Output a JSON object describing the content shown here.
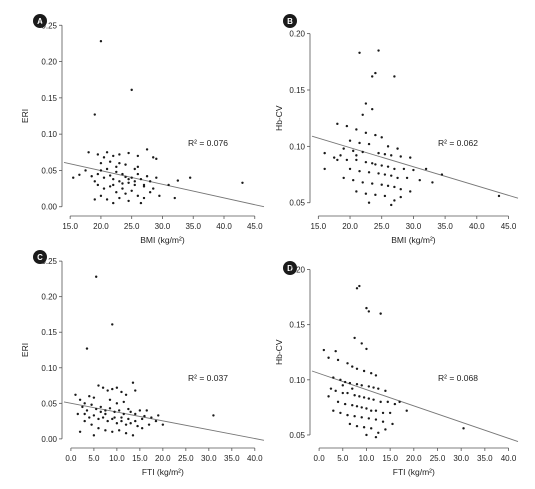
{
  "chart_data": [
    {
      "panel": "A",
      "type": "scatter",
      "xlabel": "BMI (kg/m²)",
      "ylabel": "ERI",
      "xlim": [
        14,
        46.5
      ],
      "ylim": [
        -0.01,
        0.26
      ],
      "xticks": [
        "15.0",
        "20.0",
        "25.0",
        "30.0",
        "35.0",
        "40.0",
        "45.0"
      ],
      "xtick_values": [
        15,
        20,
        25,
        30,
        35,
        40,
        45
      ],
      "yticks": [
        "0.00",
        "0.05",
        "0.10",
        "0.15",
        "0.20",
        "0.25"
      ],
      "ytick_values": [
        0,
        0.05,
        0.1,
        0.15,
        0.2,
        0.25
      ],
      "annotation": "R² = 0.076",
      "trendline": {
        "x": [
          14,
          46.5
        ],
        "y": [
          0.061,
          0.0
        ]
      },
      "points": [
        [
          20.0,
          0.228
        ],
        [
          25.0,
          0.161
        ],
        [
          19.0,
          0.127
        ],
        [
          18.0,
          0.075
        ],
        [
          19.5,
          0.072
        ],
        [
          20.5,
          0.068
        ],
        [
          21.0,
          0.075
        ],
        [
          22.0,
          0.07
        ],
        [
          23.0,
          0.072
        ],
        [
          24.5,
          0.074
        ],
        [
          26.0,
          0.07
        ],
        [
          27.5,
          0.079
        ],
        [
          28.5,
          0.068
        ],
        [
          29.0,
          0.066
        ],
        [
          15.5,
          0.04
        ],
        [
          16.5,
          0.044
        ],
        [
          17.5,
          0.05
        ],
        [
          18.5,
          0.042
        ],
        [
          19.0,
          0.035
        ],
        [
          19.5,
          0.045
        ],
        [
          20.0,
          0.05
        ],
        [
          20.5,
          0.04
        ],
        [
          21.0,
          0.052
        ],
        [
          21.5,
          0.043
        ],
        [
          22.0,
          0.038
        ],
        [
          22.5,
          0.048
        ],
        [
          23.0,
          0.035
        ],
        [
          23.5,
          0.045
        ],
        [
          24.0,
          0.041
        ],
        [
          24.5,
          0.033
        ],
        [
          25.0,
          0.04
        ],
        [
          25.5,
          0.03
        ],
        [
          26.0,
          0.045
        ],
        [
          26.5,
          0.038
        ],
        [
          27.0,
          0.028
        ],
        [
          27.5,
          0.042
        ],
        [
          28.0,
          0.035
        ],
        [
          28.5,
          0.025
        ],
        [
          29.0,
          0.04
        ],
        [
          19.5,
          0.03
        ],
        [
          20.5,
          0.025
        ],
        [
          21.5,
          0.028
        ],
        [
          22.5,
          0.02
        ],
        [
          23.5,
          0.025
        ],
        [
          24.0,
          0.018
        ],
        [
          25.0,
          0.022
        ],
        [
          26.0,
          0.015
        ],
        [
          27.0,
          0.012
        ],
        [
          28.0,
          0.02
        ],
        [
          29.5,
          0.015
        ],
        [
          21.0,
          0.01
        ],
        [
          22.0,
          0.005
        ],
        [
          23.0,
          0.012
        ],
        [
          24.5,
          0.008
        ],
        [
          26.5,
          0.005
        ],
        [
          22.5,
          0.055
        ],
        [
          24.0,
          0.058
        ],
        [
          25.5,
          0.052
        ],
        [
          23.0,
          0.06
        ],
        [
          21.5,
          0.062
        ],
        [
          20.0,
          0.06
        ],
        [
          26.0,
          0.055
        ],
        [
          31.0,
          0.03
        ],
        [
          32.0,
          0.012
        ],
        [
          32.5,
          0.036
        ],
        [
          34.5,
          0.04
        ],
        [
          43.0,
          0.033
        ],
        [
          19.0,
          0.01
        ],
        [
          20.0,
          0.015
        ],
        [
          22.0,
          0.03
        ],
        [
          23.5,
          0.032
        ],
        [
          24.5,
          0.038
        ],
        [
          25.5,
          0.035
        ],
        [
          27.0,
          0.03
        ]
      ]
    },
    {
      "panel": "B",
      "type": "scatter",
      "xlabel": "BMI (kg/m²)",
      "ylabel": "Hb-CV",
      "xlim": [
        14,
        46.5
      ],
      "ylim": [
        0.04,
        0.205
      ],
      "xticks": [
        "15.0",
        "20.0",
        "25.0",
        "30.0",
        "35.0",
        "40.0",
        "45.0"
      ],
      "xtick_values": [
        15,
        20,
        25,
        30,
        35,
        40,
        45
      ],
      "yticks": [
        "0.05",
        "0.10",
        "0.15",
        "0.20"
      ],
      "ytick_values": [
        0.05,
        0.1,
        0.15,
        0.2
      ],
      "annotation": "R² = 0.062",
      "trendline": {
        "x": [
          14,
          46.5
        ],
        "y": [
          0.109,
          0.054
        ]
      },
      "points": [
        [
          24.5,
          0.185
        ],
        [
          21.5,
          0.183
        ],
        [
          24.0,
          0.165
        ],
        [
          23.5,
          0.162
        ],
        [
          27.0,
          0.162
        ],
        [
          22.5,
          0.138
        ],
        [
          23.5,
          0.133
        ],
        [
          22.0,
          0.128
        ],
        [
          18.0,
          0.12
        ],
        [
          19.5,
          0.118
        ],
        [
          21.0,
          0.115
        ],
        [
          22.5,
          0.112
        ],
        [
          24.0,
          0.11
        ],
        [
          25.0,
          0.108
        ],
        [
          20.0,
          0.105
        ],
        [
          21.5,
          0.103
        ],
        [
          23.0,
          0.102
        ],
        [
          26.0,
          0.1
        ],
        [
          27.5,
          0.098
        ],
        [
          19.0,
          0.098
        ],
        [
          20.5,
          0.096
        ],
        [
          22.0,
          0.095
        ],
        [
          24.5,
          0.094
        ],
        [
          25.5,
          0.093
        ],
        [
          26.5,
          0.092
        ],
        [
          28.0,
          0.091
        ],
        [
          29.5,
          0.09
        ],
        [
          16.0,
          0.094
        ],
        [
          17.5,
          0.09
        ],
        [
          18.5,
          0.092
        ],
        [
          19.5,
          0.088
        ],
        [
          21.0,
          0.088
        ],
        [
          22.5,
          0.086
        ],
        [
          23.5,
          0.085
        ],
        [
          24.0,
          0.084
        ],
        [
          25.0,
          0.083
        ],
        [
          26.0,
          0.082
        ],
        [
          27.0,
          0.08
        ],
        [
          28.5,
          0.08
        ],
        [
          30.0,
          0.079
        ],
        [
          20.0,
          0.08
        ],
        [
          21.5,
          0.078
        ],
        [
          23.0,
          0.077
        ],
        [
          24.5,
          0.076
        ],
        [
          25.5,
          0.075
        ],
        [
          26.5,
          0.074
        ],
        [
          27.5,
          0.072
        ],
        [
          29.0,
          0.072
        ],
        [
          31.0,
          0.07
        ],
        [
          19.0,
          0.072
        ],
        [
          20.5,
          0.07
        ],
        [
          22.0,
          0.068
        ],
        [
          23.5,
          0.067
        ],
        [
          25.0,
          0.066
        ],
        [
          26.0,
          0.065
        ],
        [
          27.0,
          0.064
        ],
        [
          28.0,
          0.062
        ],
        [
          29.5,
          0.06
        ],
        [
          21.0,
          0.06
        ],
        [
          22.5,
          0.058
        ],
        [
          24.0,
          0.057
        ],
        [
          25.5,
          0.056
        ],
        [
          27.0,
          0.052
        ],
        [
          23.0,
          0.05
        ],
        [
          26.5,
          0.048
        ],
        [
          28.0,
          0.055
        ],
        [
          32.0,
          0.08
        ],
        [
          33.0,
          0.068
        ],
        [
          34.5,
          0.075
        ],
        [
          43.5,
          0.056
        ],
        [
          16.0,
          0.08
        ],
        [
          18.0,
          0.088
        ],
        [
          21.0,
          0.092
        ]
      ]
    },
    {
      "panel": "C",
      "type": "scatter",
      "xlabel": "FTI (kg/m²)",
      "ylabel": "ERI",
      "xlim": [
        -1.5,
        42
      ],
      "ylim": [
        -0.01,
        0.26
      ],
      "xticks": [
        "0.0",
        "5.0",
        "10.0",
        "15.0",
        "20.0",
        "25.0",
        "30.0",
        "35.0",
        "40.0"
      ],
      "xtick_values": [
        0,
        5,
        10,
        15,
        20,
        25,
        30,
        35,
        40
      ],
      "yticks": [
        "0.00",
        "0.05",
        "0.10",
        "0.15",
        "0.20",
        "0.25"
      ],
      "ytick_values": [
        0,
        0.05,
        0.1,
        0.15,
        0.2,
        0.25
      ],
      "annotation": "R² = 0.037",
      "trendline": {
        "x": [
          -1.5,
          42
        ],
        "y": [
          0.052,
          -0.002
        ]
      },
      "points": [
        [
          5.5,
          0.228
        ],
        [
          9.0,
          0.161
        ],
        [
          3.5,
          0.127
        ],
        [
          1.0,
          0.062
        ],
        [
          2.0,
          0.055
        ],
        [
          3.0,
          0.05
        ],
        [
          4.0,
          0.06
        ],
        [
          5.0,
          0.058
        ],
        [
          6.0,
          0.075
        ],
        [
          7.0,
          0.072
        ],
        [
          8.0,
          0.068
        ],
        [
          9.0,
          0.07
        ],
        [
          10.0,
          0.072
        ],
        [
          11.0,
          0.066
        ],
        [
          12.0,
          0.062
        ],
        [
          13.5,
          0.079
        ],
        [
          14.0,
          0.068
        ],
        [
          2.5,
          0.045
        ],
        [
          3.5,
          0.04
        ],
        [
          4.5,
          0.048
        ],
        [
          5.5,
          0.042
        ],
        [
          6.5,
          0.045
        ],
        [
          7.5,
          0.04
        ],
        [
          8.5,
          0.043
        ],
        [
          9.5,
          0.038
        ],
        [
          10.5,
          0.04
        ],
        [
          11.5,
          0.035
        ],
        [
          12.5,
          0.042
        ],
        [
          13.0,
          0.038
        ],
        [
          14.0,
          0.035
        ],
        [
          15.0,
          0.04
        ],
        [
          16.0,
          0.032
        ],
        [
          3.0,
          0.035
        ],
        [
          4.0,
          0.03
        ],
        [
          5.0,
          0.033
        ],
        [
          6.0,
          0.028
        ],
        [
          7.0,
          0.03
        ],
        [
          8.0,
          0.025
        ],
        [
          9.0,
          0.028
        ],
        [
          10.0,
          0.022
        ],
        [
          11.0,
          0.025
        ],
        [
          12.0,
          0.02
        ],
        [
          13.0,
          0.022
        ],
        [
          14.5,
          0.018
        ],
        [
          15.5,
          0.015
        ],
        [
          17.0,
          0.02
        ],
        [
          4.5,
          0.02
        ],
        [
          6.0,
          0.015
        ],
        [
          7.5,
          0.012
        ],
        [
          9.0,
          0.01
        ],
        [
          10.5,
          0.012
        ],
        [
          12.0,
          0.008
        ],
        [
          13.5,
          0.005
        ],
        [
          2.0,
          0.01
        ],
        [
          5.0,
          0.005
        ],
        [
          8.5,
          0.055
        ],
        [
          10.0,
          0.05
        ],
        [
          11.5,
          0.052
        ],
        [
          6.5,
          0.038
        ],
        [
          7.5,
          0.035
        ],
        [
          9.5,
          0.03
        ],
        [
          11.0,
          0.03
        ],
        [
          12.5,
          0.028
        ],
        [
          14.0,
          0.025
        ],
        [
          15.5,
          0.028
        ],
        [
          17.5,
          0.03
        ],
        [
          18.5,
          0.025
        ],
        [
          20.0,
          0.02
        ],
        [
          31.0,
          0.033
        ],
        [
          1.5,
          0.035
        ],
        [
          3.0,
          0.025
        ],
        [
          16.5,
          0.04
        ],
        [
          19.0,
          0.033
        ]
      ]
    },
    {
      "panel": "D",
      "type": "scatter",
      "xlabel": "FTI (kg/m²)",
      "ylabel": "Hb-CV",
      "xlim": [
        -1.5,
        42
      ],
      "ylim": [
        0.04,
        0.205
      ],
      "xticks": [
        "0.0",
        "5.0",
        "10.0",
        "15.0",
        "20.0",
        "25.0",
        "30.0",
        "35.0",
        "40.0"
      ],
      "xtick_values": [
        0,
        5,
        10,
        15,
        20,
        25,
        30,
        35,
        40
      ],
      "yticks": [
        "0.05",
        "0.10",
        "0.15",
        "0.20"
      ],
      "ytick_values": [
        0.05,
        0.1,
        0.15,
        0.2
      ],
      "annotation": "R² = 0.068",
      "trendline": {
        "x": [
          -1.5,
          42
        ],
        "y": [
          0.108,
          0.044
        ]
      },
      "points": [
        [
          8.5,
          0.185
        ],
        [
          8.0,
          0.183
        ],
        [
          10.0,
          0.165
        ],
        [
          10.5,
          0.162
        ],
        [
          13.0,
          0.16
        ],
        [
          7.5,
          0.138
        ],
        [
          9.0,
          0.133
        ],
        [
          10.0,
          0.128
        ],
        [
          1.0,
          0.127
        ],
        [
          3.5,
          0.126
        ],
        [
          2.0,
          0.12
        ],
        [
          4.0,
          0.118
        ],
        [
          6.0,
          0.115
        ],
        [
          7.0,
          0.112
        ],
        [
          8.0,
          0.11
        ],
        [
          9.5,
          0.108
        ],
        [
          11.0,
          0.106
        ],
        [
          12.0,
          0.104
        ],
        [
          3.0,
          0.102
        ],
        [
          4.5,
          0.1
        ],
        [
          5.5,
          0.098
        ],
        [
          6.5,
          0.097
        ],
        [
          8.0,
          0.096
        ],
        [
          9.0,
          0.095
        ],
        [
          10.5,
          0.094
        ],
        [
          11.5,
          0.093
        ],
        [
          12.5,
          0.092
        ],
        [
          14.0,
          0.09
        ],
        [
          2.5,
          0.092
        ],
        [
          3.5,
          0.09
        ],
        [
          5.0,
          0.088
        ],
        [
          6.0,
          0.088
        ],
        [
          7.5,
          0.086
        ],
        [
          8.5,
          0.085
        ],
        [
          9.5,
          0.084
        ],
        [
          10.5,
          0.083
        ],
        [
          11.5,
          0.082
        ],
        [
          13.0,
          0.08
        ],
        [
          14.5,
          0.08
        ],
        [
          16.0,
          0.078
        ],
        [
          4.0,
          0.08
        ],
        [
          5.5,
          0.078
        ],
        [
          7.0,
          0.077
        ],
        [
          8.0,
          0.076
        ],
        [
          9.0,
          0.075
        ],
        [
          10.0,
          0.074
        ],
        [
          11.0,
          0.072
        ],
        [
          12.0,
          0.072
        ],
        [
          13.5,
          0.07
        ],
        [
          15.0,
          0.07
        ],
        [
          3.0,
          0.072
        ],
        [
          4.5,
          0.07
        ],
        [
          6.0,
          0.068
        ],
        [
          7.5,
          0.067
        ],
        [
          9.0,
          0.066
        ],
        [
          10.5,
          0.065
        ],
        [
          12.0,
          0.064
        ],
        [
          13.5,
          0.062
        ],
        [
          15.5,
          0.06
        ],
        [
          6.5,
          0.06
        ],
        [
          8.0,
          0.058
        ],
        [
          9.5,
          0.057
        ],
        [
          11.0,
          0.056
        ],
        [
          12.5,
          0.052
        ],
        [
          10.0,
          0.05
        ],
        [
          12.0,
          0.048
        ],
        [
          14.0,
          0.055
        ],
        [
          17.0,
          0.08
        ],
        [
          18.5,
          0.072
        ],
        [
          30.5,
          0.056
        ],
        [
          2.0,
          0.085
        ],
        [
          5.0,
          0.095
        ],
        [
          7.0,
          0.092
        ]
      ]
    }
  ]
}
